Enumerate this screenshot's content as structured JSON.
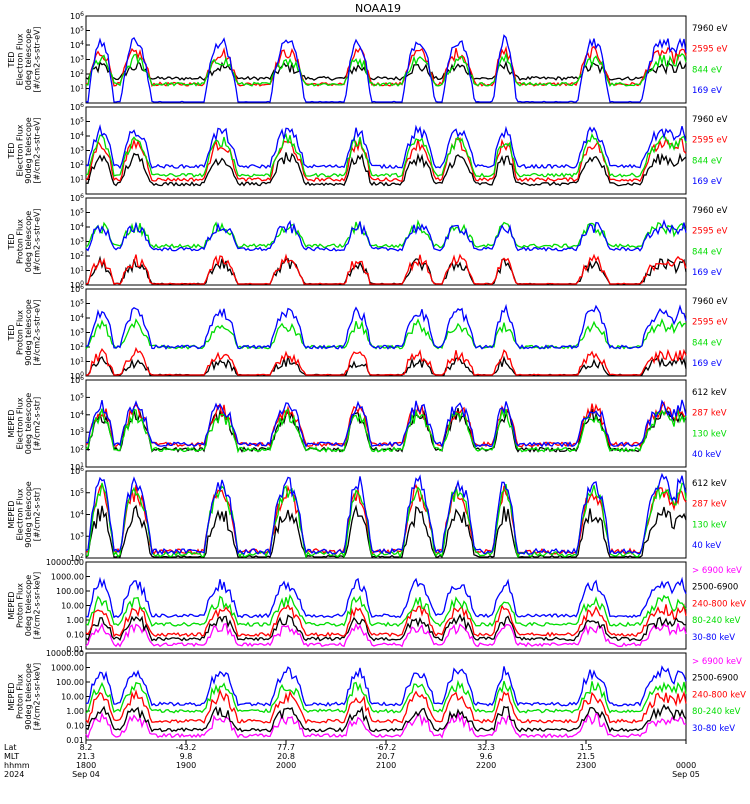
{
  "title": "NOAA19",
  "colors": {
    "black": "#000000",
    "red": "#ff0000",
    "green": "#00dd00",
    "blue": "#0000ff",
    "magenta": "#ff00ff"
  },
  "x_axis": {
    "row_labels": [
      "Lat",
      "MLT",
      "hhmm",
      "2024"
    ],
    "ticks": [
      {
        "lat": "8.2",
        "mlt": "21.3",
        "hhmm": "1800",
        "date": "Sep 04"
      },
      {
        "lat": "-43.2",
        "mlt": "9.8",
        "hhmm": "1900",
        "date": ""
      },
      {
        "lat": "77.7",
        "mlt": "20.8",
        "hhmm": "2000",
        "date": ""
      },
      {
        "lat": "-67.2",
        "mlt": "20.7",
        "hhmm": "2100",
        "date": ""
      },
      {
        "lat": "32.3",
        "mlt": "9.6",
        "hhmm": "2200",
        "date": ""
      },
      {
        "lat": "1.5",
        "mlt": "21.5",
        "hhmm": "2300",
        "date": ""
      },
      {
        "lat": "",
        "mlt": "",
        "hhmm": "0000",
        "date": "Sep 05"
      }
    ]
  },
  "chart_data": [
    {
      "type": "line",
      "ylabel": [
        "TED",
        "Electron Flux",
        "0deg telescope",
        "[#/cm2-s-str-eV]"
      ],
      "yticks": [
        "10^1",
        "10^2",
        "10^3",
        "10^4",
        "10^5",
        "10^6"
      ],
      "log_scale": true,
      "ylim": [
        1,
        1000000
      ],
      "series": [
        {
          "name": "7960 eV",
          "color": "black",
          "base": 50,
          "peak": 300
        },
        {
          "name": "2595 eV",
          "color": "red",
          "base": 20,
          "peak": 3000
        },
        {
          "name": "844 eV",
          "color": "green",
          "base": 20,
          "peak": 1000
        },
        {
          "name": "169 eV",
          "color": "blue",
          "base": 1,
          "peak": 20000
        }
      ]
    },
    {
      "type": "line",
      "ylabel": [
        "TED",
        "Electron Flux",
        "90deg telescope",
        "[#/cm2-s-str-eV]"
      ],
      "yticks": [
        "10^1",
        "10^2",
        "10^3",
        "10^4",
        "10^5",
        "10^6"
      ],
      "log_scale": true,
      "ylim": [
        1,
        1000000
      ],
      "series": [
        {
          "name": "7960 eV",
          "color": "black",
          "base": 5,
          "peak": 300
        },
        {
          "name": "2595 eV",
          "color": "red",
          "base": 10,
          "peak": 3000
        },
        {
          "name": "844 eV",
          "color": "green",
          "base": 20,
          "peak": 5000
        },
        {
          "name": "169 eV",
          "color": "blue",
          "base": 80,
          "peak": 20000
        }
      ]
    },
    {
      "type": "line",
      "ylabel": [
        "TED",
        "Proton Flux",
        "0deg telescope",
        "[#/cm2-s-str-eV]"
      ],
      "yticks": [
        "10^0",
        "10^1",
        "10^2",
        "10^3",
        "10^4",
        "10^5",
        "10^6"
      ],
      "log_scale": true,
      "ylim": [
        1,
        1000000
      ],
      "series": [
        {
          "name": "7960 eV",
          "color": "black",
          "base": 1,
          "peak": 30
        },
        {
          "name": "2595 eV",
          "color": "red",
          "base": 1,
          "peak": 50
        },
        {
          "name": "844 eV",
          "color": "green",
          "base": 500,
          "peak": 10000
        },
        {
          "name": "169 eV",
          "color": "blue",
          "base": 300,
          "peak": 10000
        }
      ]
    },
    {
      "type": "line",
      "ylabel": [
        "TED",
        "Proton Flux",
        "90deg telescope",
        "[#/cm2-s-str-eV]"
      ],
      "yticks": [
        "10^0",
        "10^1",
        "10^2",
        "10^3",
        "10^4",
        "10^5",
        "10^6"
      ],
      "log_scale": true,
      "ylim": [
        1,
        1000000
      ],
      "series": [
        {
          "name": "7960 eV",
          "color": "black",
          "base": 1,
          "peak": 10
        },
        {
          "name": "2595 eV",
          "color": "red",
          "base": 1,
          "peak": 30
        },
        {
          "name": "844 eV",
          "color": "green",
          "base": 100,
          "peak": 3000
        },
        {
          "name": "169 eV",
          "color": "blue",
          "base": 100,
          "peak": 30000
        }
      ]
    },
    {
      "type": "line",
      "ylabel": [
        "MEPED",
        "Electron Flux",
        "0deg telescope",
        "[#/cm2-s-str]"
      ],
      "yticks": [
        "10^1",
        "10^2",
        "10^3",
        "10^4",
        "10^5",
        "10^6"
      ],
      "log_scale": true,
      "ylim": [
        10,
        1000000
      ],
      "series": [
        {
          "name": "612 keV",
          "color": "black",
          "base": 100,
          "peak": 10000
        },
        {
          "name": "287 keV",
          "color": "red",
          "base": 200,
          "peak": 20000
        },
        {
          "name": "130 keV",
          "color": "green",
          "base": 100,
          "peak": 10000
        },
        {
          "name": "40 keV",
          "color": "blue",
          "base": 200,
          "peak": 30000
        }
      ]
    },
    {
      "type": "line",
      "ylabel": [
        "MEPED",
        "Electron Flux",
        "90deg telescope",
        "[#/cm2-s-str]"
      ],
      "yticks": [
        "10^2",
        "10^3",
        "10^4",
        "10^5",
        "10^6"
      ],
      "log_scale": true,
      "ylim": [
        100,
        1000000
      ],
      "series": [
        {
          "name": "612 keV",
          "color": "black",
          "base": 100,
          "peak": 10000
        },
        {
          "name": "287 keV",
          "color": "red",
          "base": 200,
          "peak": 100000
        },
        {
          "name": "130 keV",
          "color": "green",
          "base": 150,
          "peak": 150000
        },
        {
          "name": "40 keV",
          "color": "blue",
          "base": 200,
          "peak": 300000
        }
      ]
    },
    {
      "type": "line",
      "ylabel": [
        "MEPED",
        "Proton Flux",
        "0deg telescope",
        "[#/cm2-s-sr-keV]"
      ],
      "yticks": [
        "0.01",
        "0.10",
        "1.00",
        "10.00",
        "100.00",
        "1000.00",
        "10000.00"
      ],
      "log_scale": true,
      "ylim": [
        0.01,
        10000
      ],
      "series": [
        {
          "name": "> 6900 keV",
          "color": "magenta",
          "base": 0.02,
          "peak": 0.3
        },
        {
          "name": "2500-6900",
          "color": "black",
          "base": 0.05,
          "peak": 1
        },
        {
          "name": "240-800 keV",
          "color": "red",
          "base": 0.1,
          "peak": 5
        },
        {
          "name": "80-240 keV",
          "color": "green",
          "base": 0.5,
          "peak": 20
        },
        {
          "name": "30-80 keV",
          "color": "blue",
          "base": 2,
          "peak": 300
        }
      ]
    },
    {
      "type": "line",
      "ylabel": [
        "MEPED",
        "Proton Flux",
        "90deg telescope",
        "[#/cm2-s-sr-keV]"
      ],
      "yticks": [
        "0.01",
        "0.10",
        "1.00",
        "10.00",
        "100.00",
        "1000.00",
        "10000.00"
      ],
      "log_scale": true,
      "ylim": [
        0.01,
        10000
      ],
      "series": [
        {
          "name": "> 6900 keV",
          "color": "magenta",
          "base": 0.02,
          "peak": 0.3
        },
        {
          "name": "2500-6900",
          "color": "black",
          "base": 0.05,
          "peak": 1
        },
        {
          "name": "240-800 keV",
          "color": "red",
          "base": 0.2,
          "peak": 10
        },
        {
          "name": "80-240 keV",
          "color": "green",
          "base": 1,
          "peak": 50
        },
        {
          "name": "30-80 keV",
          "color": "blue",
          "base": 3,
          "peak": 500
        }
      ]
    }
  ]
}
